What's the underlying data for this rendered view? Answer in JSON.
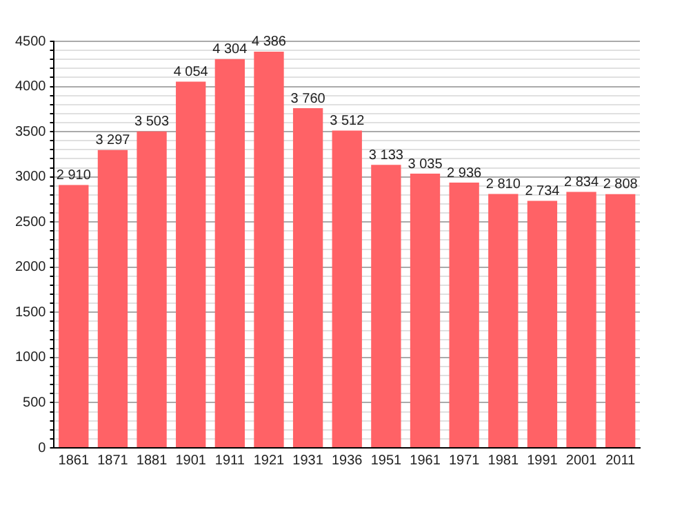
{
  "chart_data": {
    "type": "bar",
    "categories": [
      "1861",
      "1871",
      "1881",
      "1901",
      "1911",
      "1921",
      "1931",
      "1936",
      "1951",
      "1961",
      "1971",
      "1981",
      "1991",
      "2001",
      "2011"
    ],
    "values": [
      2910,
      3297,
      3503,
      4054,
      4304,
      4386,
      3760,
      3512,
      3133,
      3035,
      2936,
      2810,
      2734,
      2834,
      2808
    ],
    "value_labels": [
      "2 910",
      "3 297",
      "3 503",
      "4 054",
      "4 304",
      "4 386",
      "3 760",
      "3 512",
      "3 133",
      "3 035",
      "2 936",
      "2 810",
      "2 734",
      "2 834",
      "2 808"
    ],
    "color": "#ff6266",
    "ylim": [
      0,
      4500
    ],
    "yticks": [
      0,
      {
        "value": 100,
        "label": null
      },
      {
        "value": 200,
        "label": null
      },
      {
        "value": 300,
        "label": null
      },
      {
        "value": 400,
        "label": null
      },
      500,
      {
        "value": 600,
        "label": null
      },
      {
        "value": 700,
        "label": null
      },
      {
        "value": 800,
        "label": null
      },
      {
        "value": 900,
        "label": null
      },
      1000,
      {
        "value": 1100,
        "label": null
      },
      {
        "value": 1200,
        "label": null
      },
      {
        "value": 1300,
        "label": null
      },
      {
        "value": 1400,
        "label": null
      },
      1500,
      {
        "value": 1600,
        "label": null
      },
      {
        "value": 1700,
        "label": null
      },
      {
        "value": 1800,
        "label": null
      },
      {
        "value": 1900,
        "label": null
      },
      2000,
      {
        "value": 2100,
        "label": null
      },
      {
        "value": 2200,
        "label": null
      },
      {
        "value": 2300,
        "label": null
      },
      {
        "value": 2400,
        "label": null
      },
      2500,
      {
        "value": 2600,
        "label": null
      },
      {
        "value": 2700,
        "label": null
      },
      {
        "value": 2800,
        "label": null
      },
      {
        "value": 2900,
        "label": null
      },
      3000,
      {
        "value": 3100,
        "label": null
      },
      {
        "value": 3200,
        "label": null
      },
      {
        "value": 3300,
        "label": null
      },
      {
        "value": 3400,
        "label": null
      },
      3500,
      {
        "value": 3600,
        "label": null
      },
      {
        "value": 3700,
        "label": null
      },
      {
        "value": 3800,
        "label": null
      },
      {
        "value": 3900,
        "label": null
      },
      4000,
      {
        "value": 4100,
        "label": null
      },
      {
        "value": 4200,
        "label": null
      },
      {
        "value": 4300,
        "label": null
      },
      {
        "value": 4400,
        "label": null
      },
      4500
    ],
    "grid": "y"
  }
}
